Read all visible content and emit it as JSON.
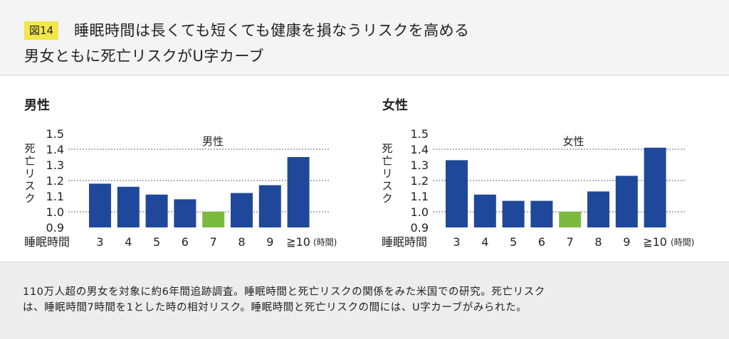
{
  "header": {
    "badge": "図14",
    "title_line1": "睡眠時間は長くても短くても健康を損なうリスクを高める",
    "title_line2": "男女ともに死亡リスクがU字カーブ"
  },
  "caption": {
    "line1": "110万人超の男女を対象に約6年間追跡調査。睡眠時間と死亡リスクの関係をみた米国での研究。死亡リスク",
    "line2": "は、睡眠時間7時間を1とした時の相対リスク。睡眠時間と死亡リスクの間には、U字カーブがみられた。"
  },
  "colors": {
    "bar": "#20489a",
    "highlight": "#7cba3f",
    "badge": "#f2e64a"
  },
  "chart_data": [
    {
      "type": "bar",
      "panel_title": "男性",
      "title": "男性",
      "xlabel": "睡眠時間",
      "ylabel": "死亡リスク",
      "x_unit": "(時間)",
      "categories": [
        "3",
        "4",
        "5",
        "6",
        "7",
        "8",
        "9",
        "≧10"
      ],
      "values": [
        1.18,
        1.16,
        1.11,
        1.08,
        1.0,
        1.12,
        1.17,
        1.35
      ],
      "highlight_index": 4,
      "ylim": [
        0.9,
        1.5
      ],
      "yticks": [
        "0.9",
        "1.0",
        "1.1",
        "1.2",
        "1.3",
        "1.4",
        "1.5"
      ],
      "gridlines": [
        1.0,
        1.2,
        1.4
      ]
    },
    {
      "type": "bar",
      "panel_title": "女性",
      "title": "女性",
      "xlabel": "睡眠時間",
      "ylabel": "死亡リスク",
      "x_unit": "(時間)",
      "categories": [
        "3",
        "4",
        "5",
        "6",
        "7",
        "8",
        "9",
        "≧10"
      ],
      "values": [
        1.33,
        1.11,
        1.07,
        1.07,
        1.0,
        1.13,
        1.23,
        1.41
      ],
      "highlight_index": 4,
      "ylim": [
        0.9,
        1.5
      ],
      "yticks": [
        "0.9",
        "1.0",
        "1.1",
        "1.2",
        "1.3",
        "1.4",
        "1.5"
      ],
      "gridlines": [
        1.0,
        1.2,
        1.4
      ]
    }
  ]
}
